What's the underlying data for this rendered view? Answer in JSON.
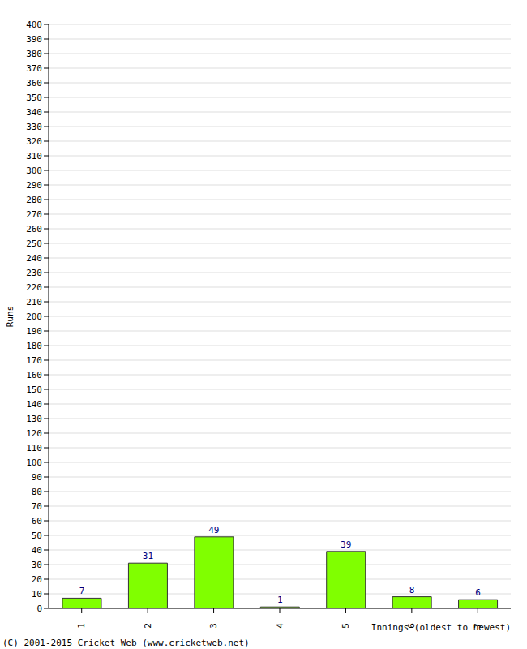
{
  "chart_data": {
    "type": "bar",
    "xlabel": "Innings (oldest to newest)",
    "ylabel": "Runs",
    "annotations": [
      "(C) 2001-2015 Cricket Web (www.cricketweb.net)"
    ],
    "categories": [
      "1",
      "2",
      "3",
      "4",
      "5",
      "6",
      "7"
    ],
    "values": [
      7,
      31,
      49,
      1,
      39,
      8,
      6
    ],
    "color": "#80ff00",
    "ylim": [
      0,
      400
    ],
    "yticks": [
      0,
      10,
      20,
      30,
      40,
      50,
      60,
      70,
      80,
      90,
      100,
      110,
      120,
      130,
      140,
      150,
      160,
      170,
      180,
      190,
      200,
      210,
      220,
      230,
      240,
      250,
      260,
      270,
      280,
      290,
      300,
      310,
      320,
      330,
      340,
      350,
      360,
      370,
      380,
      390,
      400
    ],
    "grid": true,
    "data_labels": true
  }
}
